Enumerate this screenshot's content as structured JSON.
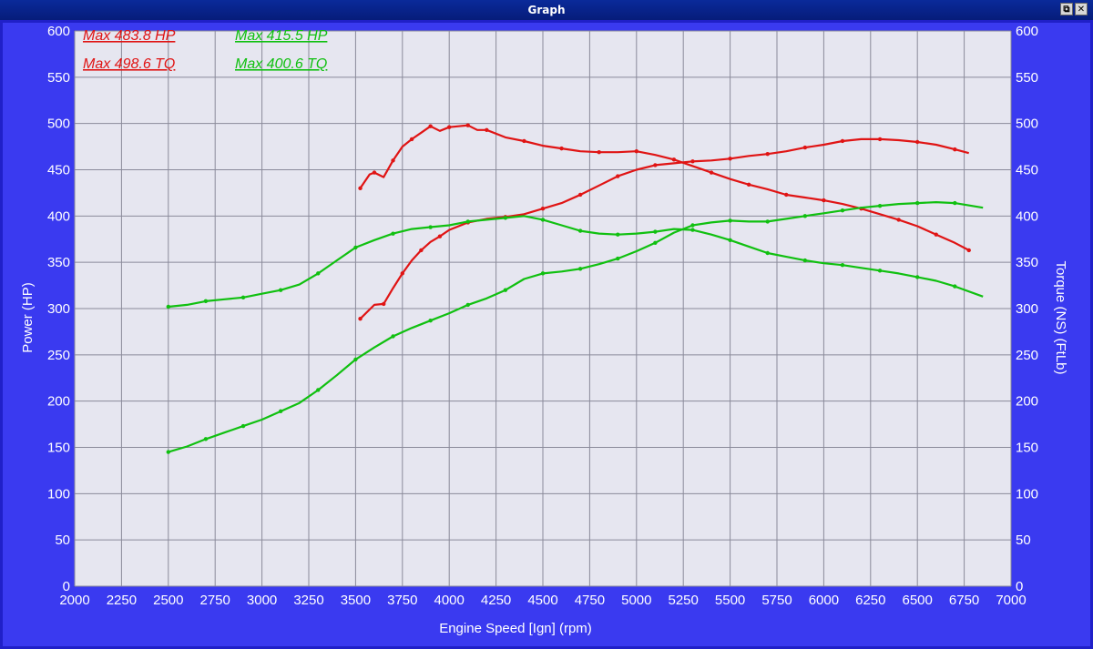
{
  "window": {
    "title": "Graph",
    "restore_glyph": "⧉",
    "close_glyph": "✕"
  },
  "colors": {
    "background": "#3a3af0",
    "plot": "#e6e6f0",
    "grid": "#8a8a9a",
    "run1": "#e01414",
    "run2": "#10c010"
  },
  "chart_data": {
    "type": "line",
    "xlabel": "Engine Speed [Ign] (rpm)",
    "ylabel": "Power (HP)",
    "y2label": "Torque (NS) (FtLb)",
    "xlim": [
      2000,
      7000
    ],
    "ylim": [
      0,
      600
    ],
    "y2lim": [
      0,
      600
    ],
    "x_ticks": [
      2000,
      2250,
      2500,
      2750,
      3000,
      3250,
      3500,
      3750,
      4000,
      4250,
      4500,
      4750,
      5000,
      5250,
      5500,
      5750,
      6000,
      6250,
      6500,
      6750,
      7000
    ],
    "y_ticks": [
      0,
      50,
      100,
      150,
      200,
      250,
      300,
      350,
      400,
      450,
      500,
      550,
      600
    ],
    "grid": true,
    "annotations": [
      {
        "text": "Max 483.8 HP",
        "color": "#e01414",
        "pos": "top-left-1"
      },
      {
        "text": "Max 415.5 HP",
        "color": "#10c010",
        "pos": "top-left-2"
      },
      {
        "text": "Max 498.6 TQ",
        "color": "#e01414",
        "pos": "top-left-3"
      },
      {
        "text": "Max 400.6 TQ",
        "color": "#10c010",
        "pos": "top-left-4"
      }
    ],
    "series": [
      {
        "color": "#e01414",
        "x": [
          3525,
          3600,
          3650,
          3700,
          3750,
          3800,
          3850,
          3900,
          3950,
          4000,
          4100,
          4200,
          4300,
          4400,
          4500,
          4600,
          4700,
          4800,
          4900,
          5000,
          5100,
          5200,
          5300,
          5400,
          5500,
          5600,
          5700,
          5800,
          5900,
          6000,
          6100,
          6200,
          6300,
          6400,
          6500,
          6600,
          6700,
          6775
        ],
        "y": [
          289,
          304,
          305,
          322,
          338,
          352,
          363,
          372,
          378,
          385,
          393,
          397,
          399,
          402,
          408,
          414,
          423,
          433,
          443,
          450,
          455,
          457,
          459,
          460,
          462,
          465,
          467,
          470,
          474,
          477,
          481,
          483,
          483,
          482,
          480,
          477,
          472,
          468
        ]
      },
      {
        "color": "#e01414",
        "x": [
          3525,
          3575,
          3600,
          3650,
          3700,
          3750,
          3800,
          3850,
          3900,
          3950,
          4000,
          4050,
          4100,
          4150,
          4200,
          4300,
          4400,
          4500,
          4600,
          4700,
          4800,
          4900,
          5000,
          5100,
          5200,
          5300,
          5400,
          5500,
          5600,
          5700,
          5800,
          5900,
          6000,
          6100,
          6200,
          6300,
          6400,
          6500,
          6600,
          6700,
          6775
        ],
        "y": [
          430,
          445,
          447,
          442,
          460,
          475,
          483,
          490,
          497,
          492,
          496,
          497,
          498,
          493,
          493,
          485,
          481,
          476,
          473,
          470,
          469,
          469,
          470,
          466,
          461,
          454,
          447,
          440,
          434,
          429,
          423,
          420,
          417,
          413,
          408,
          402,
          396,
          389,
          380,
          371,
          363
        ]
      },
      {
        "color": "#10c010",
        "x": [
          2500,
          2600,
          2700,
          2800,
          2900,
          3000,
          3100,
          3200,
          3300,
          3400,
          3500,
          3600,
          3700,
          3800,
          3900,
          4000,
          4100,
          4200,
          4300,
          4400,
          4500,
          4600,
          4700,
          4800,
          4900,
          5000,
          5100,
          5200,
          5300,
          5400,
          5500,
          5600,
          5700,
          5800,
          5900,
          6000,
          6100,
          6200,
          6300,
          6400,
          6500,
          6600,
          6700,
          6850
        ],
        "y": [
          145,
          151,
          159,
          166,
          173,
          180,
          189,
          198,
          212,
          228,
          245,
          258,
          270,
          279,
          287,
          295,
          304,
          311,
          320,
          332,
          338,
          340,
          343,
          348,
          354,
          362,
          371,
          382,
          390,
          393,
          395,
          394,
          394,
          397,
          400,
          403,
          406,
          409,
          411,
          413,
          414,
          415,
          414,
          409
        ]
      },
      {
        "color": "#10c010",
        "x": [
          2500,
          2600,
          2700,
          2800,
          2900,
          3000,
          3100,
          3200,
          3300,
          3400,
          3500,
          3600,
          3700,
          3800,
          3900,
          4000,
          4100,
          4200,
          4300,
          4400,
          4500,
          4600,
          4700,
          4800,
          4900,
          5000,
          5100,
          5200,
          5300,
          5400,
          5500,
          5600,
          5700,
          5800,
          5900,
          6000,
          6100,
          6200,
          6300,
          6400,
          6500,
          6600,
          6700,
          6850
        ],
        "y": [
          302,
          304,
          308,
          310,
          312,
          316,
          320,
          326,
          338,
          352,
          366,
          374,
          381,
          386,
          388,
          390,
          394,
          396,
          398,
          400,
          396,
          390,
          384,
          381,
          380,
          381,
          383,
          386,
          385,
          380,
          374,
          367,
          360,
          356,
          352,
          349,
          347,
          344,
          341,
          338,
          334,
          330,
          324,
          313
        ]
      }
    ]
  }
}
